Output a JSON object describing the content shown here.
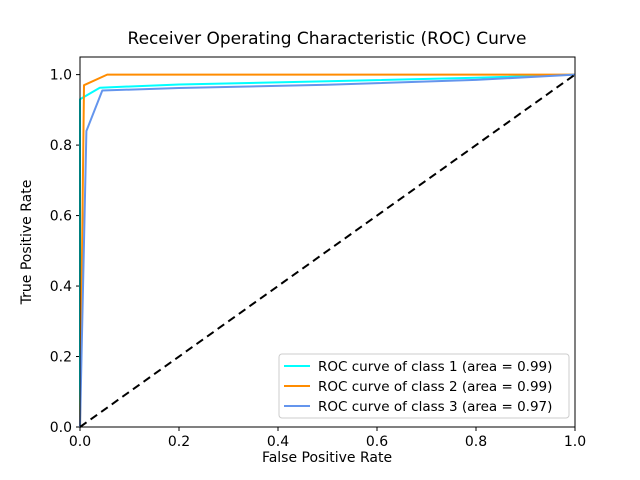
{
  "chart_data": {
    "type": "line",
    "title": "Receiver Operating Characteristic (ROC) Curve",
    "xlabel": "False Positive Rate",
    "ylabel": "True Positive Rate",
    "xlim": [
      0.0,
      1.0
    ],
    "ylim": [
      0.0,
      1.05
    ],
    "x_ticks": [
      0.0,
      0.2,
      0.4,
      0.6,
      0.8,
      1.0
    ],
    "y_ticks": [
      0.0,
      0.2,
      0.4,
      0.6,
      0.8,
      1.0
    ],
    "grid": false,
    "legend_position": "lower right",
    "series": [
      {
        "name": "ROC curve of class 1 (area = 0.99)",
        "class": 1,
        "auc": 0.99,
        "color": "#00FFFF",
        "points": [
          [
            0.0,
            0.0
          ],
          [
            0.0,
            0.93
          ],
          [
            0.04,
            0.963
          ],
          [
            0.2,
            0.972
          ],
          [
            0.5,
            0.981
          ],
          [
            0.8,
            0.991
          ],
          [
            1.0,
            1.0
          ]
        ]
      },
      {
        "name": "ROC curve of class 2 (area = 0.99)",
        "class": 2,
        "auc": 0.99,
        "color": "#FF8C00",
        "points": [
          [
            0.0,
            0.0
          ],
          [
            0.008,
            0.97
          ],
          [
            0.055,
            1.0
          ],
          [
            1.0,
            1.0
          ]
        ]
      },
      {
        "name": "ROC curve of class 3 (area = 0.97)",
        "class": 3,
        "auc": 0.97,
        "color": "#6495ED",
        "points": [
          [
            0.0,
            0.0
          ],
          [
            0.013,
            0.84
          ],
          [
            0.045,
            0.955
          ],
          [
            0.2,
            0.962
          ],
          [
            0.5,
            0.971
          ],
          [
            0.8,
            0.985
          ],
          [
            1.0,
            1.0
          ]
        ]
      }
    ],
    "reference_line": {
      "name": "chance-diagonal",
      "style": "dashed",
      "color": "#000000",
      "points": [
        [
          0.0,
          0.0
        ],
        [
          1.0,
          1.0
        ]
      ]
    }
  }
}
